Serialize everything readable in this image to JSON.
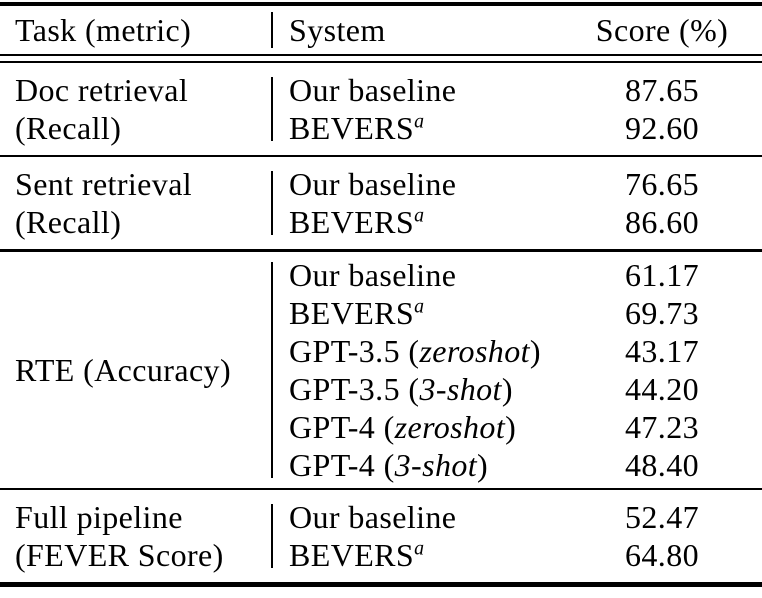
{
  "colors": {
    "text": "#000000",
    "background": "#ffffff",
    "rule": "#000000"
  },
  "table": {
    "headers": {
      "task": "Task (metric)",
      "system": "System",
      "score": "Score (%)"
    },
    "groups": [
      {
        "task_line1": "Doc retrieval",
        "task_line2": "(Recall)",
        "rows": [
          {
            "sys_pre": "Our baseline",
            "score": "87.65"
          },
          {
            "sys_pre": "BEVERS",
            "sys_sup": "a",
            "score": "92.60"
          }
        ]
      },
      {
        "task_line1": "Sent retrieval",
        "task_line2": "(Recall)",
        "rows": [
          {
            "sys_pre": "Our baseline",
            "score": "76.65"
          },
          {
            "sys_pre": "BEVERS",
            "sys_sup": "a",
            "score": "86.60"
          }
        ]
      },
      {
        "task_line1": "RTE (Accuracy)",
        "rows": [
          {
            "sys_pre": "Our baseline",
            "score": "61.17"
          },
          {
            "sys_pre": "BEVERS",
            "sys_sup": "a",
            "score": "69.73"
          },
          {
            "sys_pre": "GPT-3.5 (",
            "sys_italic": "zeroshot",
            "sys_post": ")",
            "score": "43.17"
          },
          {
            "sys_pre": "GPT-3.5 (",
            "sys_italic": "3-shot",
            "sys_post": ")",
            "score": "44.20"
          },
          {
            "sys_pre": "GPT-4 (",
            "sys_italic": "zeroshot",
            "sys_post": ")",
            "score": "47.23"
          },
          {
            "sys_pre": "GPT-4 (",
            "sys_italic": "3-shot",
            "sys_post": ")",
            "score": "48.40"
          }
        ]
      },
      {
        "task_line1": "Full pipeline",
        "task_line2": "(FEVER Score)",
        "rows": [
          {
            "sys_pre": "Our baseline",
            "score": "52.47"
          },
          {
            "sys_pre": "BEVERS",
            "sys_sup": "a",
            "score": "64.80"
          }
        ]
      }
    ]
  }
}
